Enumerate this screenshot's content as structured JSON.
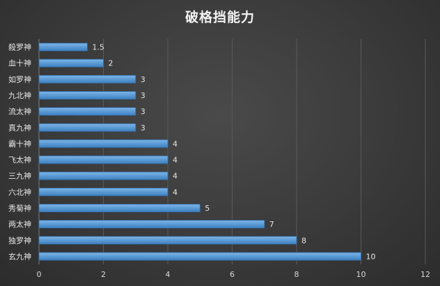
{
  "chart_data": {
    "type": "bar",
    "orientation": "horizontal",
    "title": "破格挡能力",
    "categories": [
      "殺罗神",
      "血十神",
      "如罗神",
      "九北神",
      "流太神",
      "真九神",
      "霸十神",
      "飞太神",
      "三九神",
      "六北神",
      "秀菊神",
      "两太神",
      "独罗神",
      "玄九神"
    ],
    "values": [
      1.5,
      2,
      3,
      3,
      3,
      3,
      4,
      4,
      4,
      4,
      5,
      7,
      8,
      10
    ],
    "data_labels": [
      "1.5",
      "2",
      "3",
      "3",
      "3",
      "3",
      "4",
      "4",
      "4",
      "4",
      "5",
      "7",
      "8",
      "10"
    ],
    "x_ticks": [
      "0",
      "2",
      "4",
      "6",
      "8",
      "10",
      "12"
    ],
    "xlim": [
      0,
      12
    ],
    "xlabel": "",
    "ylabel": "",
    "grid": "vertical",
    "legend": "none",
    "colors": {
      "bar": "#5b9bd5",
      "bar_edge": "#2e75b6",
      "grid": "#5a5a5a",
      "background": "#3a3a3a"
    }
  }
}
